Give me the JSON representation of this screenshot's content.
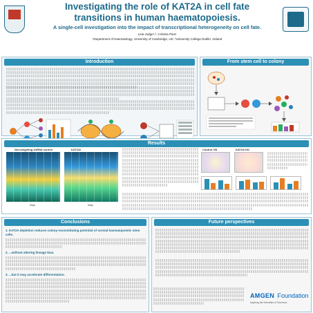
{
  "header": {
    "title_line1": "Investigating the role of KAT2A in cell fate",
    "title_line2": "transitions in human haematopoiesis.",
    "subtitle": "A single-cell investigation into the impact of transcriptional heterogeneity on cell fate.",
    "authors": "Leia Judge¹,², Cristina Pina¹",
    "affiliation": "¹Department of Haematology, University of Cambridge, UK; ²University College Dublin, Ireland"
  },
  "sections": {
    "introduction": "Introduction",
    "stem_cell": "From stem cell to colony",
    "results": "Results",
    "conclusions": "Conclusions",
    "future": "Future perspectives"
  },
  "intro": {
    "aims_title": "Aims:"
  },
  "results": {
    "heatmap_left_title": "Non-targeting shRNA control",
    "heatmap_right_title": "KAT2Ai",
    "days_label": "Days",
    "control_label": "Control CB",
    "kat2a_label": "KAT2A KD"
  },
  "conclusions": {
    "item1": "1. KAT2A depletion reduces colony-reconstituting potential of normal haematopoietic stem cells.",
    "item2": "2. ...without altering lineage bias.",
    "item3": "3. ...but it may accelerate differentiation."
  },
  "footer": {
    "foundation_name": "AMGEN",
    "foundation_word": "Foundation",
    "foundation_tag": "Inspiring the Scientists of Tomorrow"
  },
  "colors": {
    "accent": "#1d6a8a",
    "section_bar": "#2c8fb5",
    "aims_border": "#c0392b"
  }
}
